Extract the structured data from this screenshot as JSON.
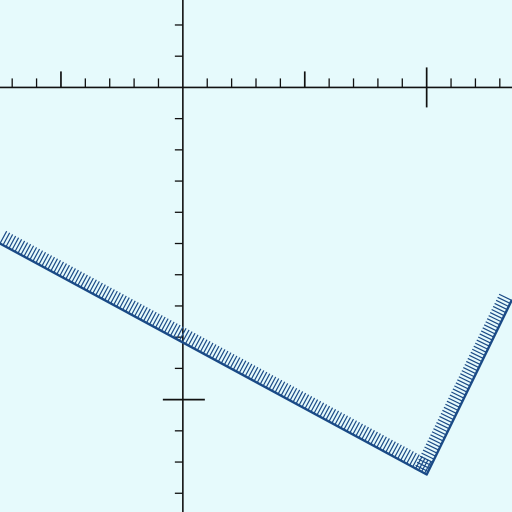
{
  "chart_data": {
    "type": "line",
    "title": "",
    "xlabel": "",
    "ylabel": "",
    "xlim": [
      -1.5,
      2.7
    ],
    "ylim": [
      -3.4,
      0.7
    ],
    "x_tick_step": 0.2,
    "x_major_ticks": [
      -1,
      1,
      2
    ],
    "y_tick_step": 0.25,
    "y_major_ticks": [
      -2.5
    ],
    "grid": false,
    "legend": "none",
    "series": [
      {
        "x": [
          -1.5,
          2.0,
          2.7
        ],
        "y": [
          -1.25,
          -3.1,
          -1.7
        ],
        "style": "hatched band",
        "color": "#1a4a86"
      }
    ]
  },
  "colors": {
    "background": "#e6fafc",
    "axis": "#111111",
    "series": "#1a4a86"
  }
}
